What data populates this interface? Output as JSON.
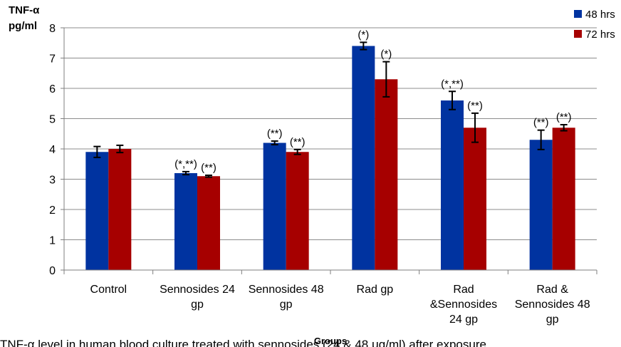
{
  "chart_data": {
    "type": "bar",
    "ylabel": [
      "TNF-α",
      "pg/ml"
    ],
    "xlabel": "Groups",
    "ylim": [
      0,
      8
    ],
    "yticks": [
      "0",
      "1",
      "2",
      "3",
      "4",
      "5",
      "6",
      "7",
      "8"
    ],
    "grid": true,
    "legend_position": "top-right",
    "categories": [
      [
        "Control"
      ],
      [
        "Sennosides 24",
        "gp"
      ],
      [
        "Sennosides 48",
        "gp"
      ],
      [
        "Rad gp"
      ],
      [
        "Rad",
        "&Sennosides",
        "24 gp"
      ],
      [
        "Rad &",
        "Sennosides 48",
        "gp"
      ]
    ],
    "series": [
      {
        "name": "48 hrs",
        "color": "#0033a0",
        "values": [
          3.9,
          3.2,
          4.2,
          7.4,
          5.6,
          4.3
        ],
        "errors": [
          0.18,
          0.05,
          0.06,
          0.12,
          0.3,
          0.32
        ],
        "annotations": [
          "",
          "(*,**)",
          "(**)",
          "(*)",
          "(*,**)",
          "(**)"
        ]
      },
      {
        "name": "72 hrs",
        "color": "#a60000",
        "values": [
          4.0,
          3.1,
          3.9,
          6.3,
          4.7,
          4.7
        ],
        "errors": [
          0.12,
          0.03,
          0.08,
          0.58,
          0.48,
          0.1
        ],
        "annotations": [
          "",
          "(**)",
          "(**)",
          "(*)",
          "(**)",
          "(**)"
        ]
      }
    ]
  },
  "caption": "TNF-α level in human blood culture treated with sennosides (24 & 48 μg/ml) after exposure"
}
